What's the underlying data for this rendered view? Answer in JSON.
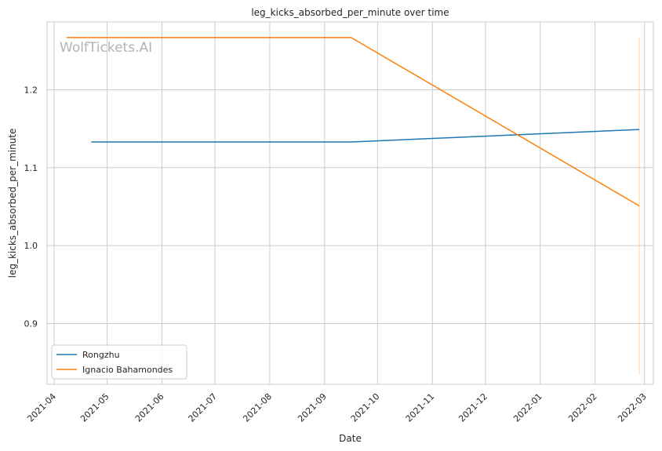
{
  "chart_data": {
    "type": "line",
    "title": "leg_kicks_absorbed_per_minute over time",
    "xlabel": "Date",
    "ylabel": "leg_kicks_absorbed_per_minute",
    "watermark": "WolfTickets.AI",
    "xlim": [
      "2021-03-28",
      "2022-03-06"
    ],
    "ylim": [
      0.822,
      1.287
    ],
    "x_ticks": [
      "2021-04",
      "2021-05",
      "2021-06",
      "2021-07",
      "2021-08",
      "2021-09",
      "2021-10",
      "2021-11",
      "2021-12",
      "2022-01",
      "2022-02",
      "2022-03"
    ],
    "y_ticks": [
      "0.9",
      "1.0",
      "1.1",
      "1.2"
    ],
    "grid": true,
    "legend_position": "bottom-left",
    "series": [
      {
        "name": "Rongzhu",
        "color": "#1f77b4",
        "points": [
          {
            "x": "2021-04-22",
            "y": 1.133
          },
          {
            "x": "2021-09-16",
            "y": 1.133
          },
          {
            "x": "2022-02-26",
            "y": 1.149
          }
        ]
      },
      {
        "name": "Ignacio Bahamondes",
        "color": "#ff7f0e",
        "points": [
          {
            "x": "2021-04-08",
            "y": 1.267
          },
          {
            "x": "2021-09-16",
            "y": 1.267
          },
          {
            "x": "2022-02-26",
            "y": 1.051
          }
        ]
      }
    ],
    "error_band": {
      "x": "2022-02-26",
      "low": 0.835,
      "high": 1.267,
      "color": "#ff7f0e"
    }
  }
}
